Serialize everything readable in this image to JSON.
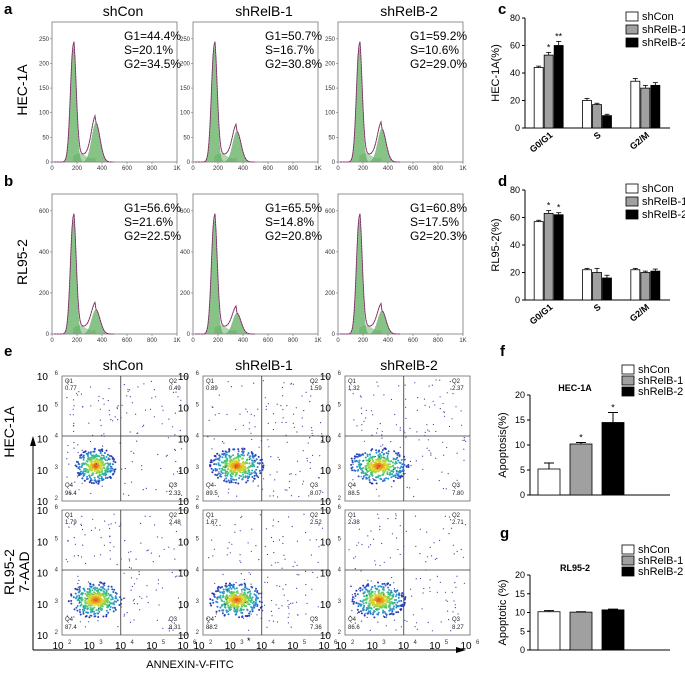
{
  "panels": {
    "a": "a",
    "b": "b",
    "c": "c",
    "d": "d",
    "e": "e",
    "f": "f",
    "g": "g"
  },
  "columns": [
    "shCon",
    "shRelB-1",
    "shRelB-2"
  ],
  "rows": [
    "HEC-1A",
    "RL95-2"
  ],
  "cell_cycle_histograms": {
    "x_ticks": [
      "0",
      "200",
      "400",
      "600",
      "800",
      "1K"
    ],
    "hec1a_y_ticks": [
      "0",
      "50",
      "100",
      "150",
      "200",
      "250"
    ],
    "rl952_y_ticks": [
      "0",
      "200",
      "400",
      "600"
    ],
    "hec1a": [
      {
        "G1": "G1=44.4%",
        "S": "S=20.1%",
        "G2": "G2=34.5%",
        "peak": 0.95,
        "g2_peak": 0.32
      },
      {
        "G1": "G1=50.7%",
        "S": "S=16.7%",
        "G2": "G2=30.8%",
        "peak": 0.95,
        "g2_peak": 0.25
      },
      {
        "G1": "G1=59.2%",
        "S": "S=10.6%",
        "G2": "G2=29.0%",
        "peak": 0.95,
        "g2_peak": 0.27
      }
    ],
    "rl952": [
      {
        "G1": "G1=56.6%",
        "S": "S=21.6%",
        "G2": "G2=22.5%",
        "peak": 0.95,
        "g2_peak": 0.2
      },
      {
        "G1": "G1=65.5%",
        "S": "S=14.8%",
        "G2": "G2=20.8%",
        "peak": 0.95,
        "g2_peak": 0.17
      },
      {
        "G1": "G1=60.8%",
        "S": "S=17.5%",
        "G2": "G2=20.3%",
        "peak": 0.95,
        "g2_peak": 0.19
      }
    ]
  },
  "colors": {
    "shCon": "#ffffff",
    "shRelB-1": "#a0a0a0",
    "shRelB-2": "#000000",
    "fit": "#5fae5f"
  },
  "chart_data": [
    {
      "type": "bar",
      "panel": "c",
      "ylabel": "HEC-1A(%)",
      "categories": [
        "G0/G1",
        "S",
        "G2/M"
      ],
      "ylim": [
        0,
        80
      ],
      "yticks": [
        "0",
        "20",
        "40",
        "60",
        "80"
      ],
      "series": [
        {
          "name": "shCon",
          "values": [
            44,
            20,
            34
          ],
          "errors": [
            1,
            1.5,
            2
          ]
        },
        {
          "name": "shRelB-1",
          "values": [
            53,
            17,
            29
          ],
          "errors": [
            2,
            1,
            2
          ]
        },
        {
          "name": "shRelB-2",
          "values": [
            60,
            9,
            31
          ],
          "errors": [
            3,
            1,
            2
          ]
        }
      ],
      "significance": [
        [
          "",
          "*",
          "**"
        ],
        [
          "",
          "",
          ""
        ],
        [
          "",
          "",
          ""
        ]
      ],
      "legend": "top-right"
    },
    {
      "type": "bar",
      "panel": "d",
      "ylabel": "RL95-2(%)",
      "categories": [
        "G0/G1",
        "S",
        "G2/M"
      ],
      "ylim": [
        0,
        80
      ],
      "yticks": [
        "0",
        "20",
        "40",
        "60",
        "80"
      ],
      "series": [
        {
          "name": "shCon",
          "values": [
            57,
            22,
            22
          ],
          "errors": [
            1,
            1,
            1
          ]
        },
        {
          "name": "shRelB-1",
          "values": [
            63,
            20,
            20
          ],
          "errors": [
            2,
            3,
            1
          ]
        },
        {
          "name": "shRelB-2",
          "values": [
            62,
            16,
            21
          ],
          "errors": [
            1.5,
            2,
            1.5
          ]
        }
      ],
      "significance": [
        [
          "",
          "*",
          "*"
        ],
        [
          "",
          "",
          ""
        ],
        [
          "",
          "",
          ""
        ]
      ],
      "legend": "top-right"
    },
    {
      "type": "bar",
      "panel": "f",
      "title": "HEC-1A",
      "ylabel": "Apoptosis(%)",
      "categories": [
        "shCon",
        "shRelB-1",
        "shRelB-2"
      ],
      "values": [
        5.2,
        10.2,
        14.5
      ],
      "errors": [
        1.2,
        0.3,
        2.0
      ],
      "ylim": [
        0,
        20
      ],
      "yticks": [
        "0",
        "5",
        "10",
        "15",
        "20"
      ],
      "significance": [
        "",
        "*",
        "*"
      ],
      "legend": "top-right"
    },
    {
      "type": "bar",
      "panel": "g",
      "title": "RL95-2",
      "ylabel": "Apoptotic (%)",
      "categories": [
        "shCon",
        "shRelB-1",
        "shRelB-2"
      ],
      "values": [
        10.2,
        10.1,
        10.7
      ],
      "errors": [
        0.3,
        0.1,
        0.2
      ],
      "ylim": [
        0,
        20
      ],
      "yticks": [
        "0",
        "5",
        "10",
        "15",
        "20"
      ],
      "significance": [
        "",
        "",
        ""
      ],
      "legend": "top-right"
    }
  ],
  "flow": {
    "x_axis": "ANNEXIN-V-FITC",
    "y_axis": "7-AAD",
    "log_ticks": [
      "10",
      "10",
      "10",
      "10",
      "10"
    ],
    "log_exps": [
      "2",
      "3",
      "4",
      "5",
      "6"
    ],
    "extra_x_mark": "*",
    "hec1a": [
      {
        "Q1": "Q1",
        "Q1v": "0.77",
        "Q2": "Q2",
        "Q2v": "0.49",
        "Q3": "Q3",
        "Q3v": "2.33",
        "Q4": "Q4",
        "Q4v": "96.4",
        "spread": 0.7
      },
      {
        "Q1": "Q1",
        "Q1v": "0.89",
        "Q2": "Q2",
        "Q2v": "1.59",
        "Q3": "Q3",
        "Q3v": "8.07",
        "Q4": "Q4",
        "Q4v": "89.5",
        "spread": 0.9
      },
      {
        "Q1": "Q1",
        "Q1v": "1.32",
        "Q2": "Q2",
        "Q2v": "2.37",
        "Q3": "Q3",
        "Q3v": "7.80",
        "Q4": "Q4",
        "Q4v": "88.5",
        "spread": 1.0
      }
    ],
    "rl952": [
      {
        "Q1": "Q1",
        "Q1v": "1.79",
        "Q2": "Q2",
        "Q2v": "2.48",
        "Q3": "Q3",
        "Q3v": "8.31",
        "Q4": "Q4",
        "Q4v": "87.4",
        "spread": 0.9
      },
      {
        "Q1": "Q1",
        "Q1v": "1.67",
        "Q2": "Q2",
        "Q2v": "2.52",
        "Q3": "Q3",
        "Q3v": "7.36",
        "Q4": "Q4",
        "Q4v": "88.2",
        "spread": 0.9
      },
      {
        "Q1": "Q1",
        "Q1v": "2.38",
        "Q2": "Q2",
        "Q2v": "2.71",
        "Q3": "Q3",
        "Q3v": "8.27",
        "Q4": "Q4",
        "Q4v": "86.6",
        "spread": 0.9
      }
    ]
  }
}
